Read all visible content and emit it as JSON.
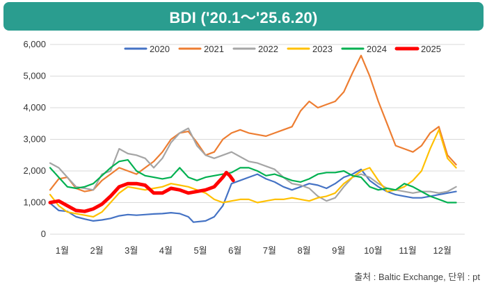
{
  "chart_data": {
    "type": "line",
    "title": "BDI ('20.1～'25.6.20)",
    "xlabel": "",
    "ylabel": "",
    "x_tick_labels": [
      "1월",
      "2월",
      "3월",
      "4월",
      "5월",
      "6월",
      "7월",
      "8월",
      "9월",
      "10월",
      "11월",
      "12월"
    ],
    "y_tick_labels": [
      "0",
      "1,000",
      "2,000",
      "3,000",
      "4,000",
      "5,000",
      "6,000"
    ],
    "ylim": [
      0,
      6000
    ],
    "xlim": [
      1,
      13
    ],
    "grid": true,
    "legend_position": "top",
    "series": [
      {
        "name": "2020",
        "color": "#4472c4",
        "x": [
          1,
          1.25,
          1.5,
          1.75,
          2,
          2.25,
          2.5,
          2.75,
          3,
          3.25,
          3.5,
          3.75,
          4,
          4.25,
          4.5,
          4.75,
          5,
          5.15,
          5.5,
          5.75,
          6,
          6.25,
          6.5,
          6.75,
          7,
          7.25,
          7.5,
          7.75,
          8,
          8.25,
          8.5,
          8.75,
          9,
          9.25,
          9.5,
          9.75,
          10,
          10.25,
          10.5,
          10.75,
          11,
          11.25,
          11.5,
          11.75,
          12,
          12.25,
          12.5,
          12.75
        ],
        "y": [
          980,
          750,
          720,
          550,
          480,
          420,
          450,
          500,
          580,
          620,
          600,
          620,
          640,
          650,
          680,
          650,
          550,
          380,
          420,
          550,
          900,
          1600,
          1700,
          1800,
          1900,
          1750,
          1650,
          1500,
          1400,
          1500,
          1600,
          1550,
          1450,
          1600,
          1800,
          1900,
          2050,
          1700,
          1500,
          1350,
          1250,
          1200,
          1150,
          1150,
          1200,
          1250,
          1300,
          1350
        ]
      },
      {
        "name": "2021",
        "color": "#ed7d31",
        "x": [
          1,
          1.25,
          1.5,
          1.75,
          2,
          2.25,
          2.5,
          2.75,
          3,
          3.25,
          3.5,
          3.75,
          4,
          4.25,
          4.5,
          4.75,
          5,
          5.25,
          5.5,
          5.75,
          6,
          6.25,
          6.5,
          6.75,
          7,
          7.25,
          7.5,
          7.75,
          8,
          8.25,
          8.5,
          8.75,
          9,
          9.25,
          9.5,
          9.75,
          10,
          10.25,
          10.5,
          10.75,
          11,
          11.25,
          11.5,
          11.75,
          12,
          12.25,
          12.5,
          12.75
        ],
        "y": [
          1400,
          1750,
          1800,
          1450,
          1350,
          1400,
          1700,
          1900,
          2100,
          2000,
          1900,
          2100,
          2300,
          2600,
          3000,
          3200,
          3250,
          2900,
          2500,
          2600,
          3000,
          3200,
          3300,
          3200,
          3150,
          3100,
          3200,
          3300,
          3400,
          3900,
          4200,
          4000,
          4100,
          4200,
          4500,
          5100,
          5650,
          5000,
          4200,
          3500,
          2800,
          2700,
          2600,
          2800,
          3200,
          3400,
          2500,
          2200
        ]
      },
      {
        "name": "2022",
        "color": "#a5a5a5",
        "x": [
          1,
          1.25,
          1.5,
          1.75,
          2,
          2.25,
          2.5,
          2.75,
          3,
          3.25,
          3.5,
          3.75,
          4,
          4.25,
          4.5,
          4.75,
          5,
          5.25,
          5.5,
          5.75,
          6,
          6.25,
          6.5,
          6.75,
          7,
          7.25,
          7.5,
          7.75,
          8,
          8.25,
          8.5,
          8.75,
          9,
          9.25,
          9.5,
          9.75,
          10,
          10.25,
          10.5,
          10.75,
          11,
          11.25,
          11.5,
          11.75,
          12,
          12.25,
          12.5,
          12.75
        ],
        "y": [
          2250,
          2100,
          1800,
          1500,
          1450,
          1400,
          1900,
          2000,
          2700,
          2550,
          2500,
          2400,
          2100,
          2400,
          2900,
          3200,
          3350,
          2800,
          2500,
          2400,
          2500,
          2600,
          2450,
          2300,
          2250,
          2150,
          2050,
          1800,
          1600,
          1550,
          1450,
          1200,
          1050,
          1150,
          1500,
          1800,
          1900,
          1800,
          1600,
          1450,
          1400,
          1350,
          1300,
          1350,
          1350,
          1300,
          1350,
          1500
        ]
      },
      {
        "name": "2023",
        "color": "#ffc000",
        "x": [
          1,
          1.25,
          1.5,
          1.75,
          2,
          2.25,
          2.5,
          2.75,
          3,
          3.25,
          3.5,
          3.75,
          4,
          4.25,
          4.5,
          4.75,
          5,
          5.25,
          5.5,
          5.75,
          6,
          6.25,
          6.5,
          6.75,
          7,
          7.25,
          7.5,
          7.75,
          8,
          8.25,
          8.5,
          8.75,
          9,
          9.25,
          9.5,
          9.75,
          10,
          10.25,
          10.5,
          10.75,
          11,
          11.25,
          11.5,
          11.75,
          12,
          12.25,
          12.5,
          12.75
        ],
        "y": [
          1250,
          900,
          700,
          650,
          600,
          550,
          700,
          1000,
          1300,
          1500,
          1450,
          1400,
          1450,
          1500,
          1600,
          1550,
          1500,
          1400,
          1300,
          1100,
          1000,
          1050,
          1100,
          1100,
          1000,
          1050,
          1100,
          1100,
          1150,
          1100,
          1050,
          1150,
          1200,
          1300,
          1600,
          1800,
          2000,
          2100,
          1700,
          1350,
          1400,
          1500,
          1700,
          2000,
          2700,
          3300,
          2400,
          2100
        ]
      },
      {
        "name": "2024",
        "color": "#00b050",
        "x": [
          1,
          1.25,
          1.5,
          1.75,
          2,
          2.25,
          2.5,
          2.75,
          3,
          3.25,
          3.5,
          3.75,
          4,
          4.25,
          4.5,
          4.75,
          5,
          5.25,
          5.5,
          5.75,
          6,
          6.25,
          6.5,
          6.75,
          7,
          7.25,
          7.5,
          7.75,
          8,
          8.25,
          8.5,
          8.75,
          9,
          9.25,
          9.5,
          9.75,
          10,
          10.25,
          10.5,
          10.75,
          11,
          11.25,
          11.5,
          11.75,
          12,
          12.25,
          12.5,
          12.75
        ],
        "y": [
          2100,
          1800,
          1500,
          1450,
          1500,
          1600,
          1850,
          2100,
          2300,
          2350,
          2000,
          1850,
          1800,
          1750,
          1800,
          2100,
          1800,
          1700,
          1800,
          1850,
          1900,
          1950,
          2100,
          2100,
          2000,
          1850,
          1900,
          1800,
          1700,
          1650,
          1750,
          1900,
          1950,
          1950,
          2000,
          1850,
          1800,
          1500,
          1400,
          1450,
          1400,
          1600,
          1500,
          1350,
          1200,
          1100,
          1000,
          1000
        ]
      },
      {
        "name": "2025",
        "color": "#ff0000",
        "x": [
          1,
          1.25,
          1.5,
          1.75,
          2,
          2.25,
          2.5,
          2.75,
          3,
          3.25,
          3.5,
          3.75,
          4,
          4.25,
          4.5,
          4.75,
          5,
          5.25,
          5.5,
          5.75,
          6,
          6.1,
          6.2,
          6.3
        ],
        "y": [
          1000,
          1050,
          900,
          750,
          720,
          800,
          950,
          1200,
          1500,
          1600,
          1600,
          1550,
          1300,
          1300,
          1450,
          1400,
          1300,
          1350,
          1400,
          1500,
          1800,
          1950,
          1850,
          1700
        ]
      }
    ]
  },
  "source_note": "출처 : Baltic Exchange,  단위 : pt"
}
